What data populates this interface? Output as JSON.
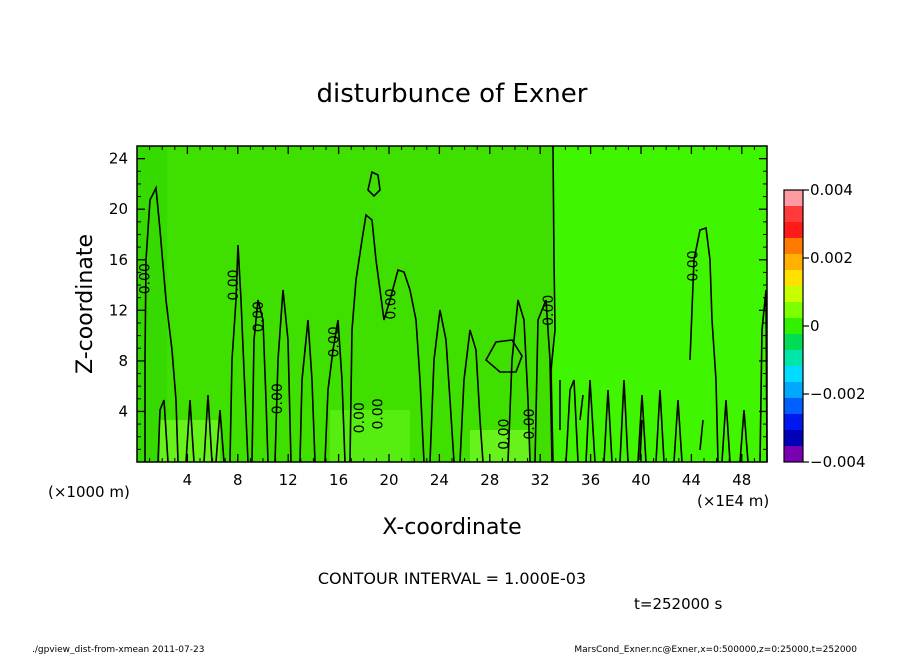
{
  "chart_data": {
    "type": "contour",
    "title": "disturbunce of Exner",
    "xlabel": "X-coordinate",
    "ylabel": "Z-coordinate",
    "x_unit": "(×1E4 m)",
    "y_unit": "(×1000 m)",
    "x_ticks": [
      "4",
      "8",
      "12",
      "16",
      "20",
      "24",
      "28",
      "32",
      "36",
      "40",
      "44",
      "48"
    ],
    "y_ticks": [
      "4",
      "8",
      "12",
      "16",
      "20",
      "24"
    ],
    "xlim": [
      0,
      50
    ],
    "ylim": [
      0,
      25
    ],
    "contour_interval_text": "CONTOUR INTERVAL = 1.000E-03",
    "time_text": "t=252000 s",
    "contour_labels": [
      {
        "text": "0.00",
        "x": 1.0,
        "y": 14.5
      },
      {
        "text": "0.00",
        "x": 8.0,
        "y": 14.0
      },
      {
        "text": "0.00",
        "x": 10.0,
        "y": 11.5
      },
      {
        "text": "0.00",
        "x": 16.0,
        "y": 9.5
      },
      {
        "text": "0.00",
        "x": 20.5,
        "y": 12.5
      },
      {
        "text": "0.00",
        "x": 33.0,
        "y": 12.0
      },
      {
        "text": "0.00",
        "x": 44.5,
        "y": 15.5
      },
      {
        "text": "0.00",
        "x": 18.0,
        "y": 3.5
      },
      {
        "text": "0.00",
        "x": 19.5,
        "y": 3.8
      },
      {
        "text": "0.00",
        "x": 29.5,
        "y": 2.2
      },
      {
        "text": "0.00",
        "x": 31.5,
        "y": 3.0
      },
      {
        "text": "0.00",
        "x": 11.5,
        "y": 5.0
      }
    ],
    "colorbar": {
      "ticks": [
        "0.004",
        "0.002",
        "0",
        "−0.002",
        "−0.004"
      ],
      "range": [
        -0.004,
        0.004
      ],
      "colors": [
        "#ff9aa3",
        "#ff3a3a",
        "#ff1a1a",
        "#ff7a00",
        "#ffb000",
        "#ffe100",
        "#c8ff00",
        "#7dff00",
        "#32f000",
        "#00dd55",
        "#00e6a8",
        "#00dcff",
        "#00a8ff",
        "#0060ff",
        "#0018f0",
        "#0000b8",
        "#7a00b4"
      ]
    }
  },
  "footer": {
    "left": "./gpview_dist-from-xmean  2011-07-23",
    "right": "MarsCond_Exner.nc@Exner,x=0:500000,z=0:25000,t=252000"
  }
}
